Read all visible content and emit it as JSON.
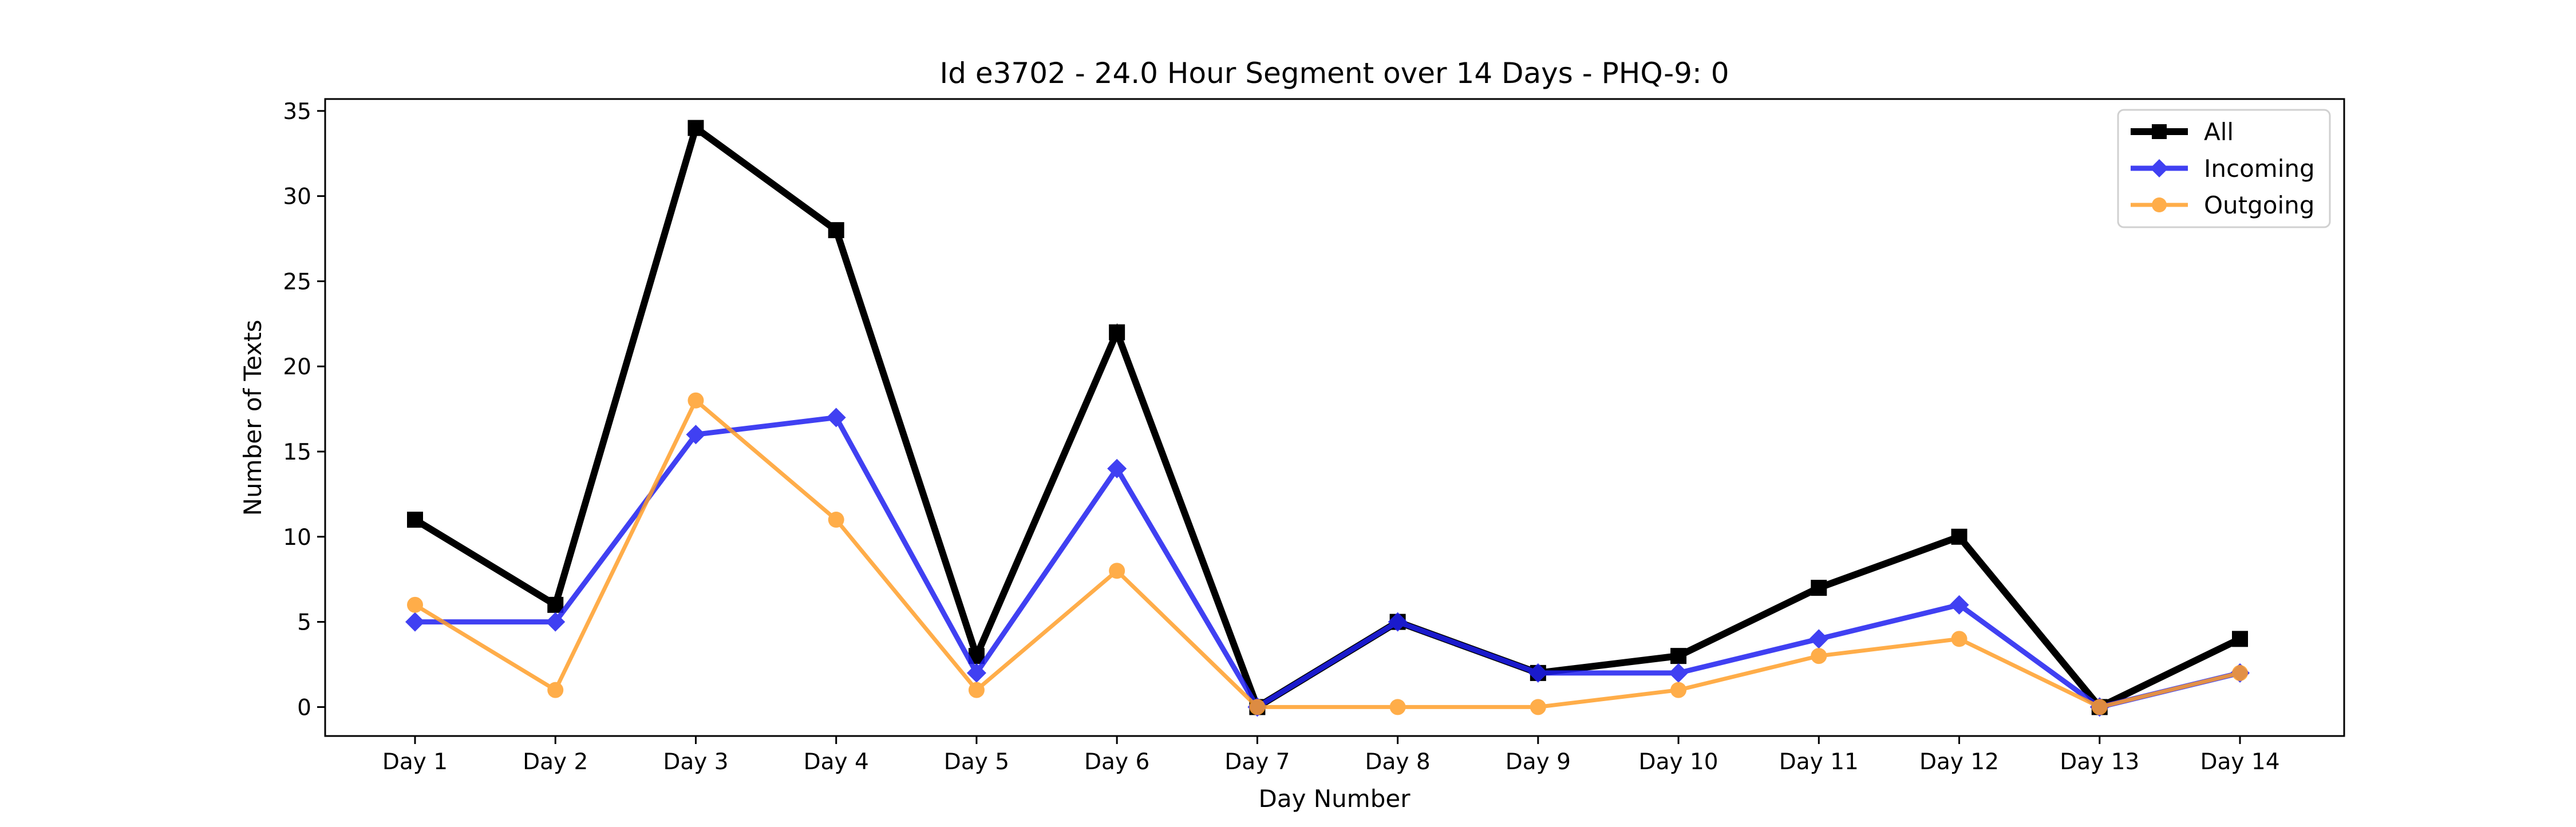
{
  "chart_data": {
    "type": "line",
    "title": "Id e3702 - 24.0 Hour Segment over 14 Days - PHQ-9: 0",
    "xlabel": "Day Number",
    "ylabel": "Number of Texts",
    "categories": [
      "Day 1",
      "Day 2",
      "Day 3",
      "Day 4",
      "Day 5",
      "Day 6",
      "Day 7",
      "Day 8",
      "Day 9",
      "Day 10",
      "Day 11",
      "Day 12",
      "Day 13",
      "Day 14"
    ],
    "ylim": [
      -1.7,
      35.7
    ],
    "yticks": [
      0,
      5,
      10,
      15,
      20,
      25,
      30,
      35
    ],
    "grid": false,
    "legend_position": "top-right",
    "series": [
      {
        "name": "All",
        "values": [
          11,
          6,
          34,
          28,
          3,
          22,
          0,
          5,
          2,
          3,
          7,
          10,
          0,
          4
        ],
        "color": "#000000",
        "marker": "square"
      },
      {
        "name": "Incoming",
        "values": [
          5,
          5,
          16,
          17,
          2,
          14,
          0,
          5,
          2,
          2,
          4,
          6,
          0,
          2
        ],
        "color": "#1f1ff0",
        "marker": "diamond"
      },
      {
        "name": "Outgoing",
        "values": [
          6,
          1,
          18,
          11,
          1,
          8,
          0,
          0,
          0,
          1,
          3,
          4,
          0,
          2
        ],
        "color": "#ff9f2a",
        "marker": "circle"
      }
    ]
  }
}
